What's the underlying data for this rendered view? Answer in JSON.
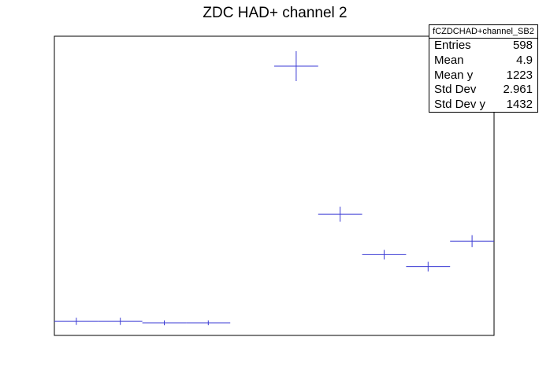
{
  "title": "ZDC HAD+ channel 2",
  "stats": {
    "name": "fCZDCHAD+channel_SB2",
    "rows": [
      {
        "label": "Entries",
        "value": "598"
      },
      {
        "label": "Mean",
        "value": "4.9"
      },
      {
        "label": "Mean y",
        "value": "1223"
      },
      {
        "label": "Std Dev",
        "value": "2.961"
      },
      {
        "label": "Std Dev y",
        "value": "1432"
      }
    ]
  },
  "colors": {
    "marker": "#3b3bd4",
    "frame": "#000000"
  },
  "chart_data": {
    "type": "scatter",
    "title": "ZDC HAD+ channel 2",
    "xlim": [
      0,
      10
    ],
    "ylim": [
      0,
      100
    ],
    "grid": false,
    "legend": "top-right",
    "points": [
      {
        "x": 0.5,
        "xerr": 0.5,
        "y": 4.7,
        "yerr": 1.2
      },
      {
        "x": 1.5,
        "xerr": 0.5,
        "y": 4.7,
        "yerr": 1.2
      },
      {
        "x": 2.5,
        "xerr": 0.5,
        "y": 4.2,
        "yerr": 0.8
      },
      {
        "x": 3.5,
        "xerr": 0.5,
        "y": 4.2,
        "yerr": 0.8
      },
      {
        "x": 5.5,
        "xerr": 0.5,
        "y": 90.0,
        "yerr": 5.0
      },
      {
        "x": 6.5,
        "xerr": 0.5,
        "y": 40.5,
        "yerr": 2.5
      },
      {
        "x": 7.5,
        "xerr": 0.5,
        "y": 27.0,
        "yerr": 1.6
      },
      {
        "x": 8.5,
        "xerr": 0.5,
        "y": 23.0,
        "yerr": 1.6
      },
      {
        "x": 9.5,
        "xerr": 0.5,
        "y": 31.5,
        "yerr": 2.0
      }
    ]
  }
}
